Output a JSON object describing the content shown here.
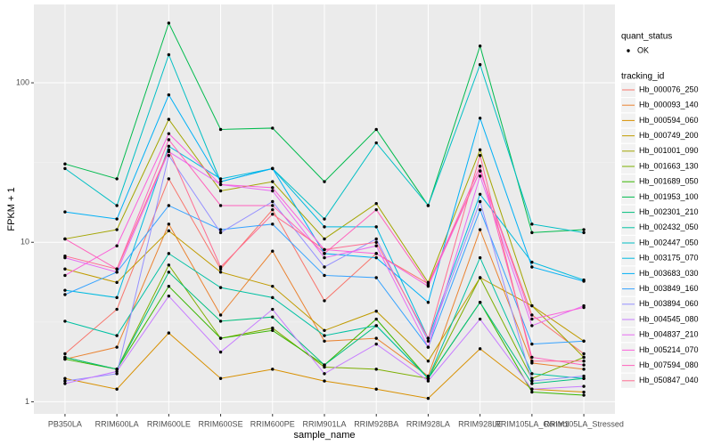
{
  "chart_data": {
    "type": "line",
    "x_label": "sample_name",
    "y_label": "FPKM + 1",
    "log_y": true,
    "grid": true,
    "ylim": [
      0.84,
      310
    ],
    "yticks": [
      1,
      10,
      100
    ],
    "status_legend": {
      "title": "quant_status",
      "items": [
        "OK"
      ]
    },
    "legend_title": "tracking_id",
    "categories": [
      "PB350LA",
      "RRIM600LA",
      "RRIM600LE",
      "RRIM600SE",
      "RRIM600PE",
      "RRIM901LA",
      "RRIM928BA",
      "RRIM928LA",
      "RRIM928LE",
      "RRIM105LA_Control",
      "RRIM105LA_Stressed"
    ],
    "series": [
      {
        "name": "Hb_000076_250",
        "color": "#F8766D",
        "values": [
          2.0,
          3.8,
          25,
          6.8,
          16,
          4.3,
          8.5,
          5.5,
          28,
          3.5,
          2.0
        ]
      },
      {
        "name": "Hb_000093_140",
        "color": "#EA8331",
        "values": [
          1.85,
          2.2,
          13,
          3.5,
          8.8,
          2.4,
          2.5,
          1.45,
          12,
          1.75,
          1.6
        ]
      },
      {
        "name": "Hb_000594_060",
        "color": "#D89000",
        "values": [
          1.4,
          1.2,
          2.7,
          1.4,
          1.6,
          1.35,
          1.2,
          1.05,
          2.15,
          1.2,
          1.15
        ]
      },
      {
        "name": "Hb_000749_200",
        "color": "#C09B00",
        "values": [
          6.8,
          5.6,
          11.8,
          6.5,
          5.3,
          2.8,
          3.7,
          1.8,
          6.0,
          4.0,
          2.4
        ]
      },
      {
        "name": "Hb_001001_090",
        "color": "#A3A500",
        "values": [
          10.5,
          12,
          59,
          21,
          24,
          10.5,
          17.5,
          5.6,
          38,
          4.0,
          1.9
        ]
      },
      {
        "name": "Hb_001663_130",
        "color": "#7CAE00",
        "values": [
          1.9,
          1.6,
          7.2,
          2.5,
          2.9,
          1.65,
          1.6,
          1.4,
          6.0,
          1.4,
          1.9
        ]
      },
      {
        "name": "Hb_001689_050",
        "color": "#39B600",
        "values": [
          1.85,
          1.6,
          5.3,
          2.5,
          2.8,
          1.7,
          3.3,
          1.4,
          4.2,
          1.15,
          1.1
        ]
      },
      {
        "name": "Hb_001953_100",
        "color": "#00BB4E",
        "values": [
          31,
          25,
          237,
          51,
          52,
          24,
          51,
          17,
          170,
          11.5,
          12
        ]
      },
      {
        "name": "Hb_002301_210",
        "color": "#00BF7D",
        "values": [
          1.9,
          1.6,
          6.5,
          3.2,
          3.4,
          1.7,
          3.0,
          1.4,
          4.2,
          1.3,
          1.4
        ]
      },
      {
        "name": "Hb_002432_050",
        "color": "#00C1A3",
        "values": [
          3.2,
          2.6,
          8.5,
          5.2,
          4.5,
          2.6,
          3.0,
          1.4,
          8.0,
          1.5,
          1.4
        ]
      },
      {
        "name": "Hb_002447_050",
        "color": "#00BFC4",
        "values": [
          29,
          17,
          150,
          24,
          29,
          14,
          42,
          17,
          130,
          13,
          11.5
        ]
      },
      {
        "name": "Hb_003175_070",
        "color": "#00BAE0",
        "values": [
          5.0,
          4.5,
          40,
          25,
          29,
          12.5,
          12.5,
          2.5,
          20,
          7.5,
          5.8
        ]
      },
      {
        "name": "Hb_003683_030",
        "color": "#00B0F6",
        "values": [
          15.5,
          14,
          84,
          24,
          29,
          8.5,
          8,
          4.2,
          60,
          7,
          5.7
        ]
      },
      {
        "name": "Hb_003849_160",
        "color": "#35A2FF",
        "values": [
          4.7,
          6.5,
          17,
          12,
          13,
          6.2,
          6.0,
          2.2,
          16,
          2.3,
          2.4
        ]
      },
      {
        "name": "Hb_003894_060",
        "color": "#9590FF",
        "values": [
          1.35,
          1.5,
          35,
          11.5,
          18,
          7.0,
          10.5,
          2.4,
          18,
          1.35,
          1.45
        ]
      },
      {
        "name": "Hb_004545_080",
        "color": "#C77CFF",
        "values": [
          1.3,
          1.55,
          4.6,
          2.05,
          3.8,
          1.5,
          2.3,
          1.35,
          3.3,
          1.2,
          1.25
        ]
      },
      {
        "name": "Hb_004837_210",
        "color": "#E76BF3",
        "values": [
          8.0,
          6.5,
          37,
          23,
          21,
          8.0,
          9.5,
          2.2,
          26,
          3.0,
          4.0
        ]
      },
      {
        "name": "Hb_005214_070",
        "color": "#FA62DB",
        "values": [
          6.2,
          9.5,
          48,
          23,
          22,
          9.0,
          8.5,
          5.3,
          28,
          3.3,
          3.9
        ]
      },
      {
        "name": "Hb_007594_080",
        "color": "#FF62BC",
        "values": [
          10.5,
          6.8,
          44,
          17,
          17,
          8.5,
          16,
          5.4,
          30,
          1.9,
          1.7
        ]
      },
      {
        "name": "Hb_050847_040",
        "color": "#FF6C91",
        "values": [
          8.2,
          6.8,
          38,
          7.0,
          15,
          9.0,
          10,
          2.5,
          35,
          1.8,
          1.8
        ]
      }
    ]
  }
}
